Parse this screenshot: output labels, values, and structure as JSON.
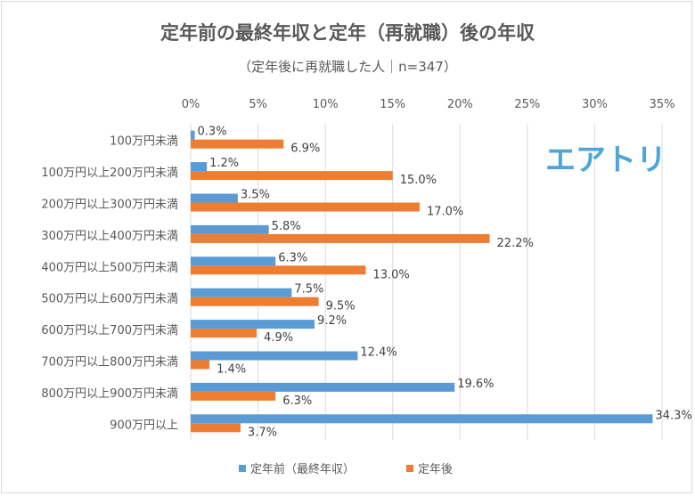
{
  "chart_data": {
    "type": "bar",
    "orientation": "horizontal",
    "title": "定年前の最終年収と定年（再就職）後の年収",
    "subtitle": "（定年後に再就職した人｜n=347）",
    "categories": [
      "100万円未満",
      "100万円以上200万円未満",
      "200万円以上300万円未満",
      "300万円以上400万円未満",
      "400万円以上500万円未満",
      "500万円以上600万円未満",
      "600万円以上700万円未満",
      "700万円以上800万円未満",
      "800万円以上900万円未満",
      "900万円以上"
    ],
    "series": [
      {
        "name": "定年前（最終年収）",
        "color": "#5b9bd5",
        "values": [
          0.3,
          1.2,
          3.5,
          5.8,
          6.3,
          7.5,
          9.2,
          12.4,
          19.6,
          34.3
        ]
      },
      {
        "name": "定年後",
        "color": "#ed7d31",
        "values": [
          6.9,
          15.0,
          17.0,
          22.2,
          13.0,
          9.5,
          4.9,
          1.4,
          6.3,
          3.7
        ]
      }
    ],
    "xlim": [
      0,
      35
    ],
    "xticks": [
      "0%",
      "5%",
      "10%",
      "15%",
      "20%",
      "25%",
      "30%",
      "35%"
    ],
    "xaxis_position": "top",
    "grid": true,
    "legend": "bottom",
    "data_label_format": "0.0%"
  },
  "logo": {
    "text": "エアトリ",
    "color": "#4ea6d6"
  }
}
